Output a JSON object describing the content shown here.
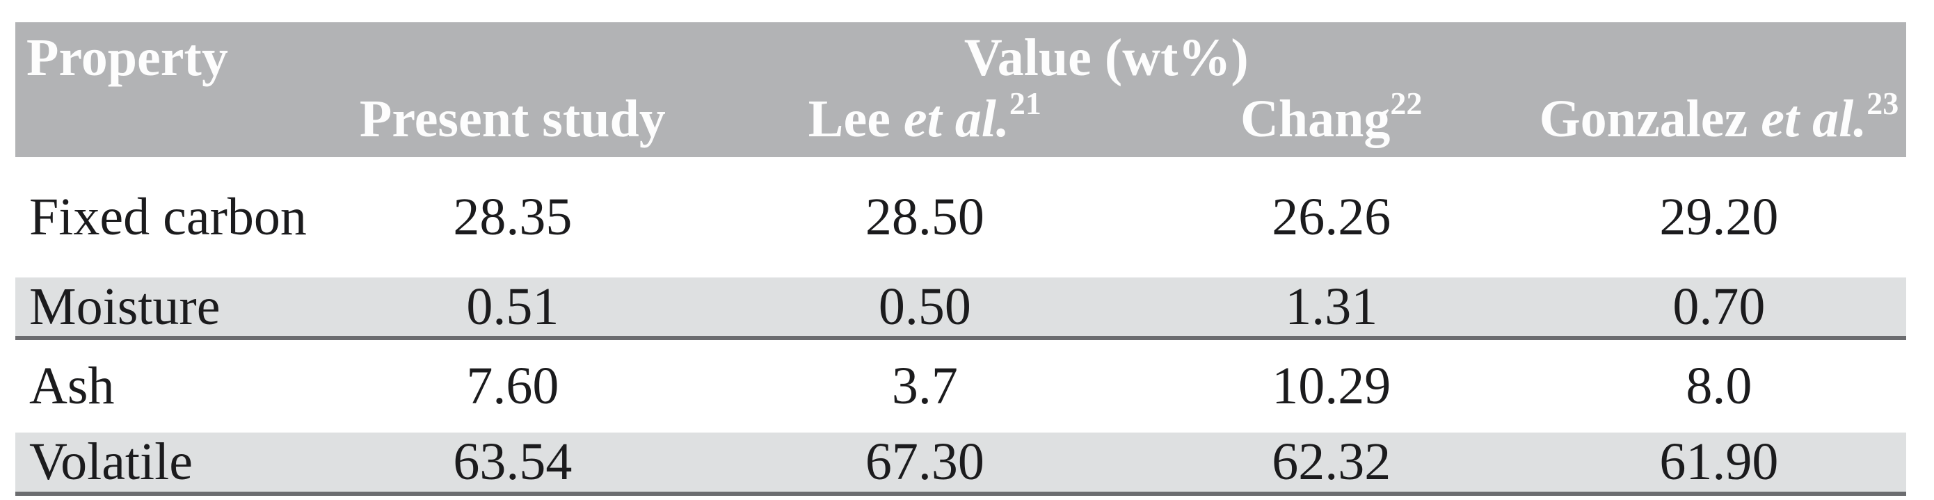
{
  "table": {
    "header": {
      "property_label": "Property",
      "value_group_label": "Value (wt%)",
      "columns": [
        {
          "text": "Present study",
          "emph": "",
          "sup": ""
        },
        {
          "text": "Lee ",
          "emph": "et al.",
          "sup": "21"
        },
        {
          "text": "Chang",
          "emph": "",
          "sup": "22"
        },
        {
          "text": "Gonzalez ",
          "emph": "et al.",
          "sup": "23"
        }
      ]
    },
    "rows": [
      {
        "property": "Fixed carbon",
        "values": [
          "28.35",
          "28.50",
          "26.26",
          "29.20"
        ]
      },
      {
        "property": "Moisture",
        "values": [
          "0.51",
          "0.50",
          "1.31",
          "0.70"
        ]
      },
      {
        "property": "Ash",
        "values": [
          "7.60",
          "3.7",
          "10.29",
          "8.0"
        ]
      },
      {
        "property": "Volatile",
        "values": [
          "63.54",
          "67.30",
          "62.32",
          "61.90"
        ]
      }
    ]
  },
  "colors": {
    "header_background": "#b2b3b5",
    "shaded_row_background": "#dee0e1",
    "separator_rule": "#6b6c6f",
    "header_text": "#fdfdfd",
    "body_text": "#1b1b1d"
  },
  "chart_data": {
    "type": "table",
    "title": "Value (wt%)",
    "categories": [
      "Fixed carbon",
      "Moisture",
      "Ash",
      "Volatile"
    ],
    "series": [
      {
        "name": "Present study",
        "values": [
          28.35,
          0.51,
          7.6,
          63.54
        ]
      },
      {
        "name": "Lee et al. [21]",
        "values": [
          28.5,
          0.5,
          3.7,
          67.3
        ]
      },
      {
        "name": "Chang [22]",
        "values": [
          26.26,
          1.31,
          10.29,
          62.32
        ]
      },
      {
        "name": "Gonzalez et al. [23]",
        "values": [
          29.2,
          0.7,
          8.0,
          61.9
        ]
      }
    ]
  }
}
